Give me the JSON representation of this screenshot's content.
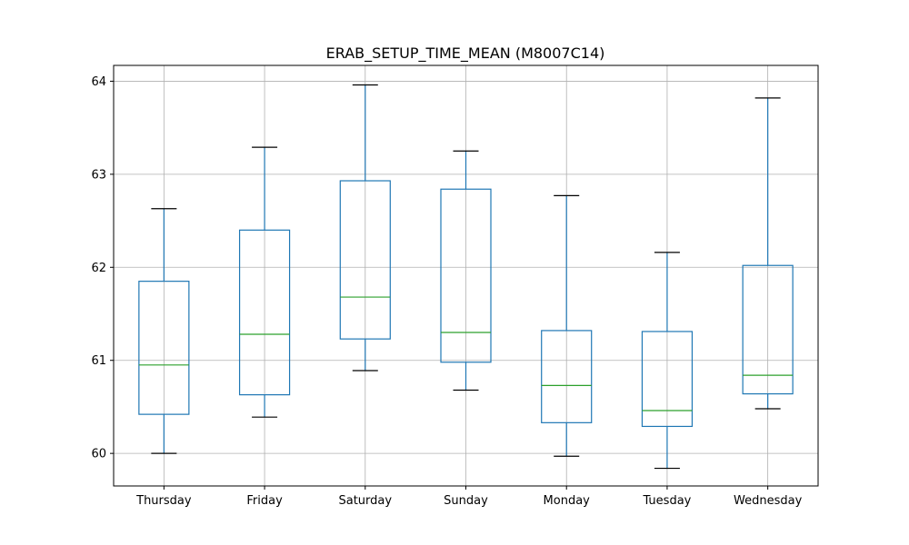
{
  "chart_data": {
    "type": "box",
    "title": "ERAB_SETUP_TIME_MEAN (M8007C14)",
    "xlabel": "",
    "ylabel": "",
    "ylim": [
      59.65,
      64.17
    ],
    "yticks": [
      60,
      61,
      62,
      63,
      64
    ],
    "grid": true,
    "categories": [
      "Thursday",
      "Friday",
      "Saturday",
      "Sunday",
      "Monday",
      "Tuesday",
      "Wednesday"
    ],
    "boxes": [
      {
        "whisker_low": 60.0,
        "q1": 60.42,
        "median": 60.95,
        "q3": 61.85,
        "whisker_high": 62.63
      },
      {
        "whisker_low": 60.39,
        "q1": 60.63,
        "median": 61.28,
        "q3": 62.4,
        "whisker_high": 63.29
      },
      {
        "whisker_low": 60.89,
        "q1": 61.23,
        "median": 61.68,
        "q3": 62.93,
        "whisker_high": 63.96
      },
      {
        "whisker_low": 60.68,
        "q1": 60.98,
        "median": 61.3,
        "q3": 62.84,
        "whisker_high": 63.25
      },
      {
        "whisker_low": 59.97,
        "q1": 60.33,
        "median": 60.73,
        "q3": 61.32,
        "whisker_high": 62.77
      },
      {
        "whisker_low": 59.84,
        "q1": 60.29,
        "median": 60.46,
        "q3": 61.31,
        "whisker_high": 62.16
      },
      {
        "whisker_low": 60.48,
        "q1": 60.64,
        "median": 60.84,
        "q3": 62.02,
        "whisker_high": 63.82
      }
    ],
    "colors": {
      "box": "#1f77b4",
      "whisker": "#1f77b4",
      "cap": "#000000",
      "median": "#2ca02c",
      "grid": "#b0b0b0"
    }
  }
}
